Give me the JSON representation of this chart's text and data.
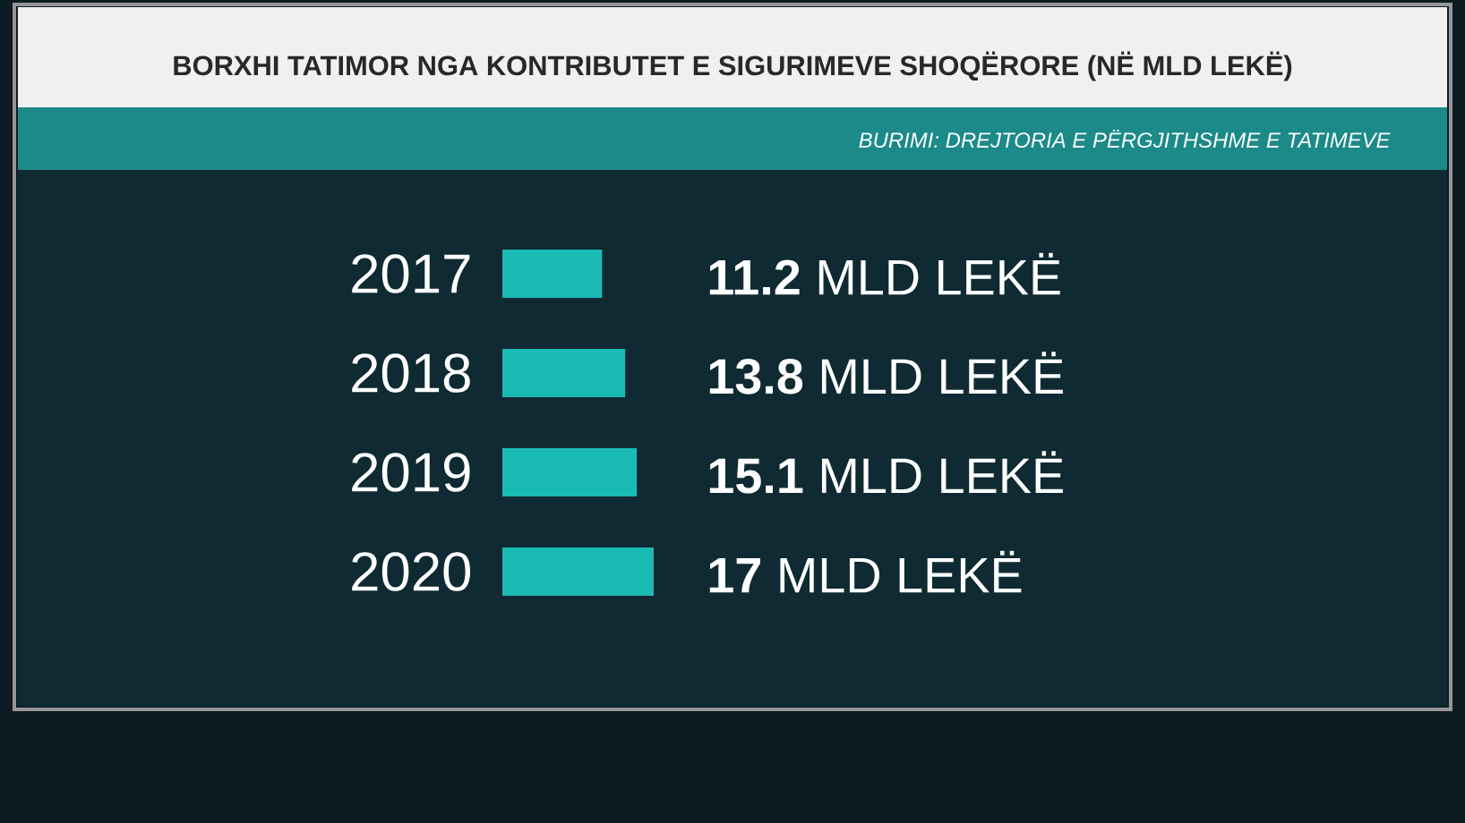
{
  "chart_data": {
    "type": "bar",
    "orientation": "horizontal",
    "title": "BORXHI TATIMOR NGA KONTRIBUTET E SIGURIMEVE SHOQËRORE (NË MLD LEKË)",
    "annotations": [
      "BURIMI: DREJTORIA E PËRGJITHSHME E TATIMEVE"
    ],
    "categories": [
      "2017",
      "2018",
      "2019",
      "2020"
    ],
    "values": [
      11.2,
      13.8,
      15.1,
      17
    ],
    "value_labels": [
      "**11.2** MLD LEKË",
      "**13.8** MLD LEKË",
      "**15.1** MLD LEKË",
      "**17** MLD LEKË"
    ],
    "color": "#1abab5"
  }
}
